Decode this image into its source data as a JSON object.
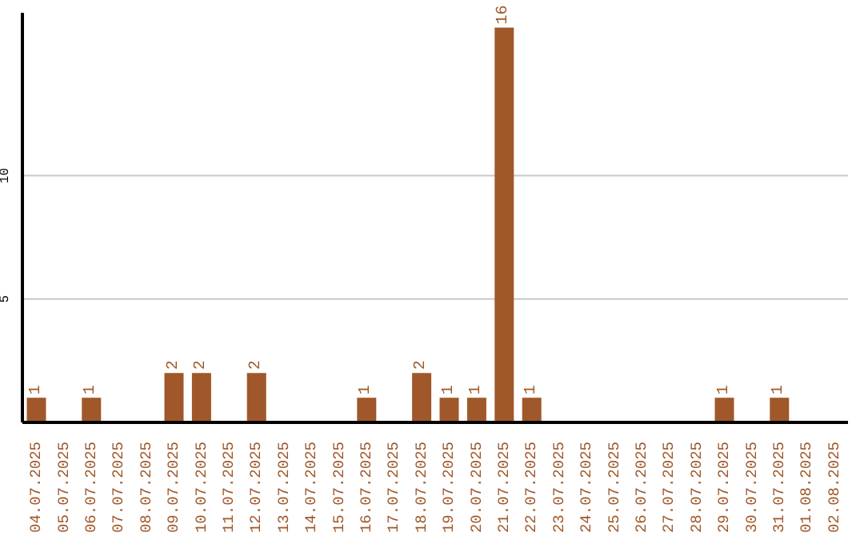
{
  "chart_data": {
    "type": "bar",
    "categories": [
      "04.07.2025",
      "05.07.2025",
      "06.07.2025",
      "07.07.2025",
      "08.07.2025",
      "09.07.2025",
      "10.07.2025",
      "11.07.2025",
      "12.07.2025",
      "13.07.2025",
      "14.07.2025",
      "15.07.2025",
      "16.07.2025",
      "17.07.2025",
      "18.07.2025",
      "19.07.2025",
      "20.07.2025",
      "21.07.2025",
      "22.07.2025",
      "23.07.2025",
      "24.07.2025",
      "25.07.2025",
      "26.07.2025",
      "27.07.2025",
      "28.07.2025",
      "29.07.2025",
      "30.07.2025",
      "31.07.2025",
      "01.08.2025",
      "02.08.2025"
    ],
    "values": [
      1,
      0,
      1,
      0,
      0,
      2,
      2,
      0,
      2,
      0,
      0,
      0,
      1,
      0,
      2,
      1,
      1,
      16,
      1,
      0,
      0,
      0,
      0,
      0,
      0,
      1,
      0,
      1,
      0,
      0
    ],
    "value_labels": [
      "1",
      null,
      "1",
      null,
      null,
      "2",
      "2",
      null,
      "2",
      null,
      null,
      null,
      "1",
      null,
      "2",
      "1",
      "1",
      "16",
      "1",
      null,
      null,
      null,
      null,
      null,
      null,
      "1",
      null,
      "1",
      null,
      null
    ],
    "color": "#a0582a",
    "ylim": [
      0,
      16.6
    ],
    "yticks": [
      5,
      10
    ],
    "grid": "y"
  }
}
